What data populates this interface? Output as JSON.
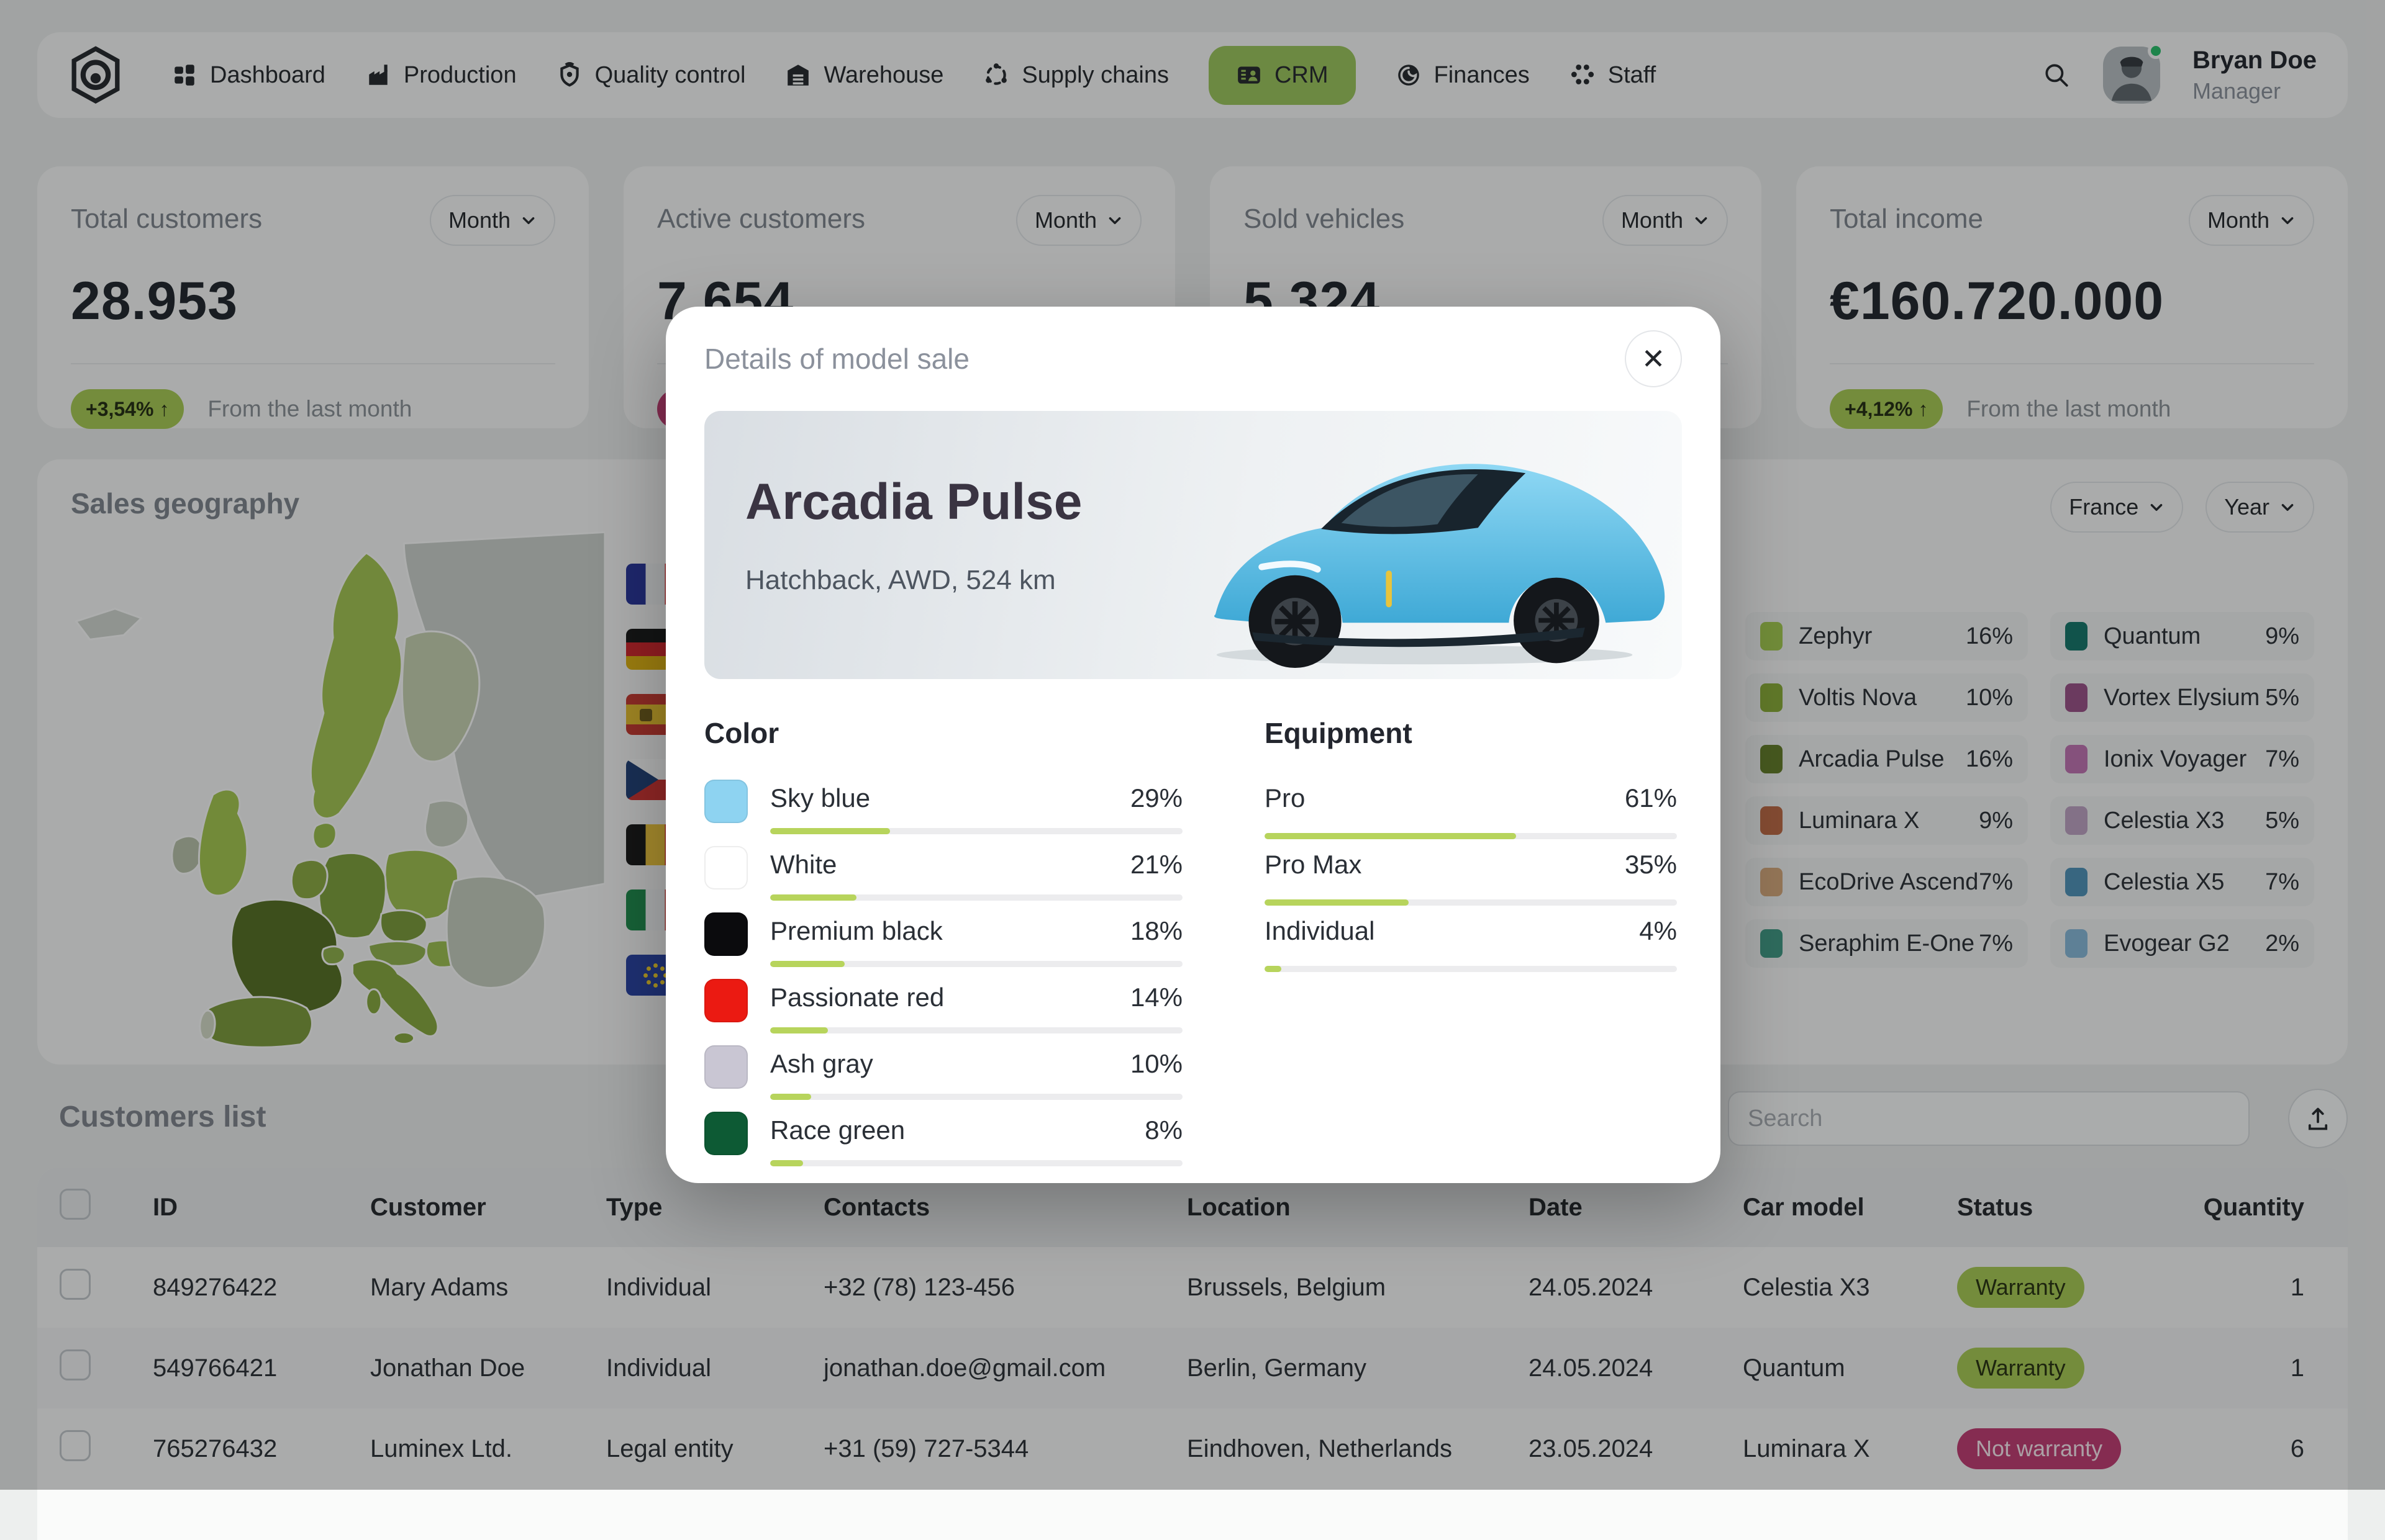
{
  "nav": {
    "items": [
      {
        "label": "Dashboard"
      },
      {
        "label": "Production"
      },
      {
        "label": "Quality control"
      },
      {
        "label": "Warehouse"
      },
      {
        "label": "Supply chains"
      },
      {
        "label": "CRM"
      },
      {
        "label": "Finances"
      },
      {
        "label": "Staff"
      }
    ],
    "user": {
      "name": "Bryan Doe",
      "role": "Manager",
      "status": "online"
    }
  },
  "stats": {
    "cards": [
      {
        "title": "Total customers",
        "period": "Month",
        "value": "28.953",
        "badge": "+3,54% ↑",
        "badge_color": "#a9cb52",
        "note": "From the last month"
      },
      {
        "title": "Active customers",
        "period": "Month",
        "value": "7.654",
        "badge": "-",
        "badge_color": "#c23a72",
        "note": ""
      },
      {
        "title": "Sold vehicles",
        "period": "Month",
        "value": "5.324",
        "badge": "",
        "badge_color": "",
        "note": ""
      },
      {
        "title": "Total income",
        "period": "Month",
        "value": "€160.720.000",
        "badge": "+4,12% ↑",
        "badge_color": "#a9cb52",
        "note": "From the last month"
      }
    ]
  },
  "geography": {
    "title": "Sales geography",
    "filters": {
      "country": "France",
      "period": "Year"
    },
    "flags": [
      "France",
      "Germany",
      "Spain",
      "Czech Republic",
      "Belgium",
      "Italy",
      "European Union"
    ],
    "legend": [
      {
        "name": "Zephyr",
        "pct": "16%",
        "color": "#a4cb4e"
      },
      {
        "name": "Voltis Nova",
        "pct": "10%",
        "color": "#8bad36"
      },
      {
        "name": "Arcadia Pulse",
        "pct": "16%",
        "color": "#637d27"
      },
      {
        "name": "Luminara X",
        "pct": "9%",
        "color": "#c06a43"
      },
      {
        "name": "EcoDrive Ascend",
        "pct": "7%",
        "color": "#d8a97b"
      },
      {
        "name": "Seraphim E-One",
        "pct": "7%",
        "color": "#3f9a85"
      },
      {
        "name": "Quantum",
        "pct": "9%",
        "color": "#13756a"
      },
      {
        "name": "Vortex Elysium",
        "pct": "5%",
        "color": "#9b4f88"
      },
      {
        "name": "Ionix Voyager",
        "pct": "7%",
        "color": "#c273b4"
      },
      {
        "name": "Celestia X3",
        "pct": "5%",
        "color": "#bfa3c4"
      },
      {
        "name": "Celestia X5",
        "pct": "7%",
        "color": "#4e92ba"
      },
      {
        "name": "Evogear G2",
        "pct": "2%",
        "color": "#88badb"
      }
    ]
  },
  "modal": {
    "title": "Details of model sale",
    "close_label": "✕",
    "accent": "#b7d45c",
    "car": {
      "name": "Arcadia Pulse",
      "specs": "Hatchback, AWD, 524 km"
    },
    "color_section": {
      "title": "Color",
      "items": [
        {
          "name": "Sky blue",
          "pct": "29%",
          "swatch": "#8ed3f1"
        },
        {
          "name": "White",
          "pct": "21%",
          "swatch": "#ffffff"
        },
        {
          "name": "Premium black",
          "pct": "18%",
          "swatch": "#0b0b0d"
        },
        {
          "name": "Passionate red",
          "pct": "14%",
          "swatch": "#eb1a12"
        },
        {
          "name": "Ash gray",
          "pct": "10%",
          "swatch": "#c9c6d3"
        },
        {
          "name": "Race green",
          "pct": "8%",
          "swatch": "#0d5a34"
        }
      ]
    },
    "equipment_section": {
      "title": "Equipment",
      "items": [
        {
          "name": "Pro",
          "pct": "61%"
        },
        {
          "name": "Pro Max",
          "pct": "35%"
        },
        {
          "name": "Individual",
          "pct": "4%"
        }
      ]
    }
  },
  "customers": {
    "title": "Customers list",
    "search_placeholder": "Search",
    "columns": [
      "ID",
      "Customer",
      "Type",
      "Contacts",
      "Location",
      "Date",
      "Car model",
      "Status",
      "Quantity"
    ],
    "status_colors": {
      "warranty": "#a9cb52",
      "not_warranty": "#c23a72"
    },
    "rows": [
      {
        "id": "849276422",
        "customer": "Mary Adams",
        "type": "Individual",
        "contacts": "+32 (78) 123-456",
        "location": "Brussels, Belgium",
        "date": "24.05.2024",
        "car_model": "Celestia X3",
        "status": "Warranty",
        "quantity": "1"
      },
      {
        "id": "549766421",
        "customer": "Jonathan Doe",
        "type": "Individual",
        "contacts": "jonathan.doe@gmail.com",
        "location": "Berlin, Germany",
        "date": "24.05.2024",
        "car_model": "Quantum",
        "status": "Warranty",
        "quantity": "1"
      },
      {
        "id": "765276432",
        "customer": "Luminex Ltd.",
        "type": "Legal entity",
        "contacts": "+31 (59) 727-5344",
        "location": "Eindhoven, Netherlands",
        "date": "23.05.2024",
        "car_model": "Luminara X",
        "status": "Not warranty",
        "quantity": "6"
      }
    ]
  }
}
